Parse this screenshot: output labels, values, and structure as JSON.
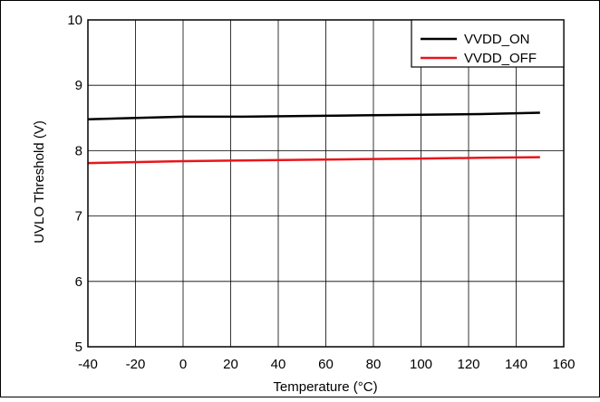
{
  "chart_data": {
    "type": "line",
    "title": "",
    "xlabel": "Temperature (°C)",
    "ylabel": "UVLO Threshold (V)",
    "xlim": [
      -40,
      160
    ],
    "ylim": [
      5,
      10
    ],
    "xticks": [
      -40,
      -20,
      0,
      20,
      40,
      60,
      80,
      100,
      120,
      140,
      160
    ],
    "yticks": [
      5,
      6,
      7,
      8,
      9,
      10
    ],
    "grid": true,
    "legend_position": "top-right",
    "series": [
      {
        "name": "VVDD_ON",
        "color": "#000000",
        "x": [
          -40,
          0,
          25,
          50,
          75,
          100,
          125,
          150
        ],
        "y": [
          8.48,
          8.52,
          8.52,
          8.53,
          8.54,
          8.55,
          8.56,
          8.58
        ]
      },
      {
        "name": "VVDD_OFF",
        "color": "#e8161b",
        "x": [
          -40,
          0,
          25,
          50,
          75,
          100,
          125,
          150
        ],
        "y": [
          7.81,
          7.84,
          7.85,
          7.86,
          7.87,
          7.88,
          7.89,
          7.9
        ]
      }
    ]
  }
}
